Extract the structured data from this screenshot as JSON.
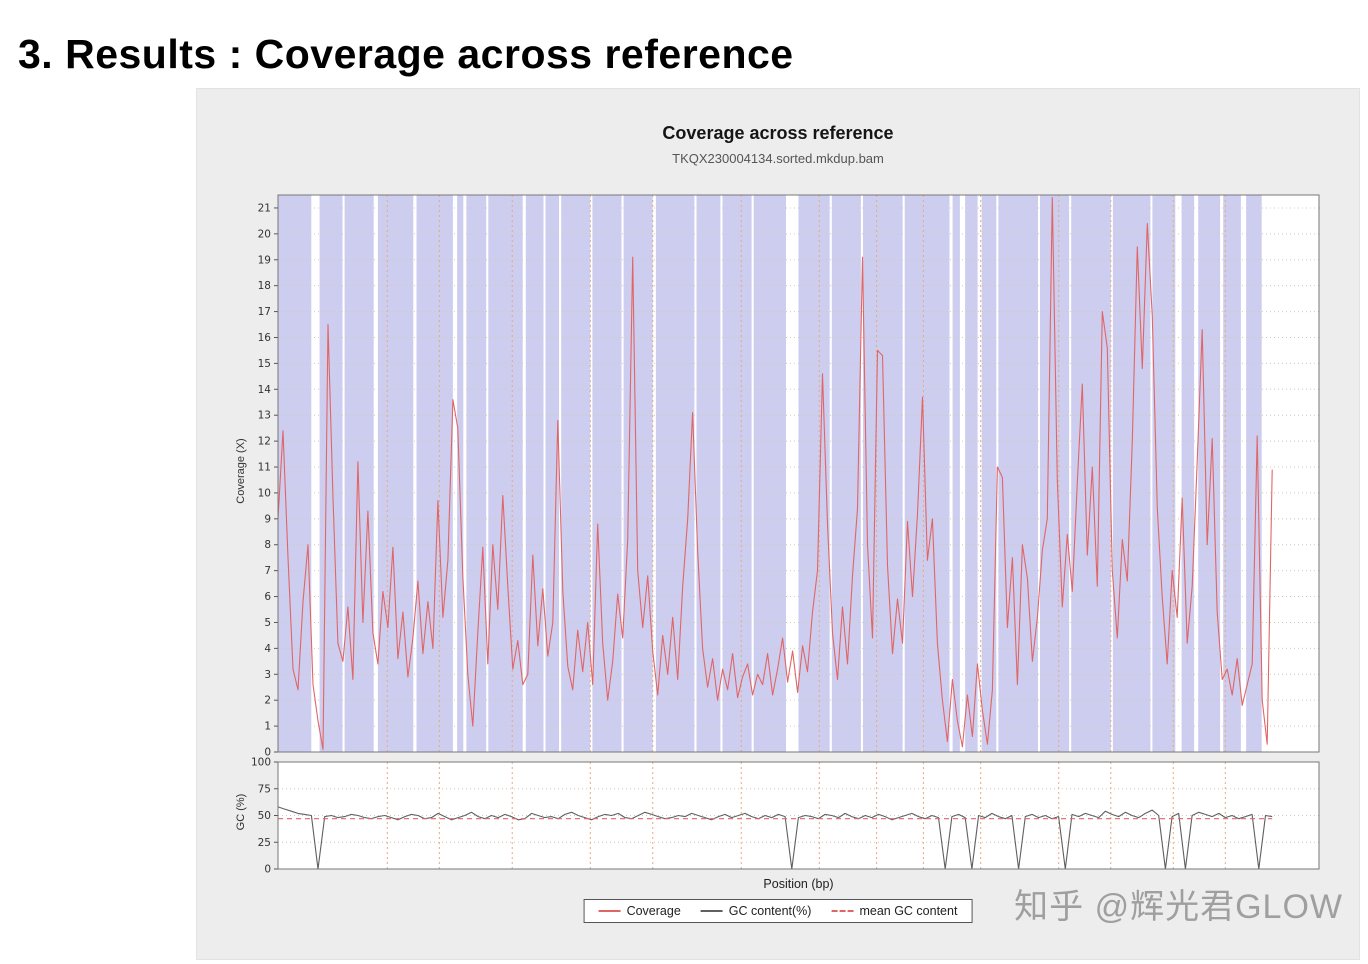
{
  "header": {
    "title": "3. Results : Coverage across reference"
  },
  "chart": {
    "title": "Coverage across reference",
    "subtitle": "TKQX230004134.sorted.mkdup.bam",
    "xlabel": "Position (bp)",
    "ylabel_top": "Coverage (X)",
    "ylabel_bottom": "GC (%)"
  },
  "legend": {
    "items": [
      {
        "label": "Coverage",
        "style": "solid-red"
      },
      {
        "label": "GC content(%)",
        "style": "solid-gray"
      },
      {
        "label": "mean GC content",
        "style": "dashed-red"
      }
    ]
  },
  "watermark": {
    "text": "知乎 @辉光君GLOW"
  },
  "colors": {
    "coverage_line": "#e06666",
    "gc_line": "#606060",
    "mean_gc_line": "#e06666",
    "coverage_band": "#cdcdf0",
    "hgrid": "#d8c8ae",
    "vgrid": "#e8a97c",
    "plot_border": "#777777"
  },
  "chart_data": [
    {
      "type": "line",
      "title": "Coverage across reference",
      "subtitle": "TKQX230004134.sorted.mkdup.bam",
      "ylabel": "Coverage (X)",
      "xlabel": "Position (bp)",
      "ylim": [
        0,
        21.5
      ],
      "yticks": [
        0,
        1,
        2,
        3,
        4,
        5,
        6,
        7,
        8,
        9,
        10,
        11,
        12,
        13,
        14,
        15,
        16,
        17,
        18,
        19,
        20,
        21
      ],
      "x_extent": 0.955,
      "grid_color": "#d8c8ae",
      "xgrid_color": "#e8a97c",
      "xgrid": [
        0.105,
        0.155,
        0.225,
        0.3,
        0.36,
        0.445,
        0.52,
        0.575,
        0.62,
        0.675,
        0.75,
        0.8,
        0.86,
        0.91
      ],
      "band": {
        "color": "#cdcdf0",
        "segments": [
          [
            0,
            0.032
          ],
          [
            0.04,
            0.062
          ],
          [
            0.064,
            0.092
          ],
          [
            0.096,
            0.13
          ],
          [
            0.133,
            0.168
          ],
          [
            0.172,
            0.178
          ],
          [
            0.181,
            0.2
          ],
          [
            0.202,
            0.235
          ],
          [
            0.238,
            0.255
          ],
          [
            0.257,
            0.27
          ],
          [
            0.272,
            0.3
          ],
          [
            0.302,
            0.33
          ],
          [
            0.332,
            0.36
          ],
          [
            0.363,
            0.4
          ],
          [
            0.402,
            0.425
          ],
          [
            0.427,
            0.455
          ],
          [
            0.457,
            0.488
          ],
          [
            0.5,
            0.53
          ],
          [
            0.532,
            0.56
          ],
          [
            0.562,
            0.6
          ],
          [
            0.602,
            0.645
          ],
          [
            0.648,
            0.655
          ],
          [
            0.66,
            0.672
          ],
          [
            0.676,
            0.69
          ],
          [
            0.692,
            0.73
          ],
          [
            0.732,
            0.76
          ],
          [
            0.762,
            0.8
          ],
          [
            0.802,
            0.838
          ],
          [
            0.84,
            0.862
          ],
          [
            0.868,
            0.88
          ],
          [
            0.884,
            0.905
          ],
          [
            0.908,
            0.925
          ],
          [
            0.93,
            0.945
          ]
        ]
      },
      "series": [
        {
          "name": "Coverage",
          "color": "#e06666",
          "values": [
            9.0,
            12.4,
            7.5,
            3.2,
            2.4,
            5.8,
            8.0,
            2.6,
            1.2,
            0.1,
            16.5,
            9.8,
            4.2,
            3.5,
            5.6,
            2.8,
            11.2,
            5.0,
            9.3,
            4.6,
            3.4,
            6.2,
            4.8,
            7.9,
            3.6,
            5.4,
            2.9,
            4.4,
            6.6,
            3.8,
            5.8,
            4.0,
            9.7,
            5.2,
            7.4,
            13.6,
            12.5,
            6.8,
            3.0,
            1.0,
            4.6,
            7.9,
            3.4,
            8.0,
            5.5,
            9.9,
            6.4,
            3.2,
            4.3,
            2.6,
            3.0,
            7.6,
            4.1,
            6.3,
            3.7,
            5.0,
            12.8,
            6.2,
            3.3,
            2.4,
            4.7,
            3.1,
            5.0,
            2.6,
            8.8,
            4.2,
            2.0,
            3.5,
            6.1,
            4.4,
            8.2,
            19.1,
            7.0,
            4.8,
            6.8,
            3.9,
            2.2,
            4.5,
            3.0,
            5.2,
            2.8,
            6.4,
            9.0,
            13.1,
            7.8,
            4.0,
            2.5,
            3.6,
            2.0,
            3.2,
            2.4,
            3.8,
            2.1,
            2.9,
            3.4,
            2.2,
            3.0,
            2.6,
            3.8,
            2.2,
            3.2,
            4.4,
            2.7,
            3.9,
            2.3,
            4.1,
            3.1,
            5.4,
            7.0,
            14.6,
            8.8,
            4.6,
            2.8,
            5.6,
            3.4,
            6.8,
            9.4,
            19.1,
            8.0,
            4.4,
            15.5,
            15.3,
            7.2,
            3.8,
            5.9,
            4.2,
            8.9,
            6.0,
            9.2,
            13.7,
            7.4,
            9.0,
            4.2,
            2.0,
            0.4,
            2.8,
            1.2,
            0.2,
            2.2,
            0.6,
            3.4,
            1.6,
            0.3,
            2.4,
            11.0,
            10.6,
            4.8,
            7.5,
            2.6,
            8.0,
            6.7,
            3.5,
            5.2,
            7.8,
            9.0,
            21.4,
            10.5,
            5.6,
            8.4,
            6.2,
            10.4,
            14.2,
            7.6,
            11.0,
            6.4,
            17.0,
            15.6,
            7.0,
            4.4,
            8.2,
            6.6,
            12.0,
            19.5,
            14.8,
            20.4,
            16.8,
            9.4,
            6.0,
            3.4,
            7.0,
            5.2,
            9.8,
            4.2,
            6.4,
            11.2,
            16.3,
            8.0,
            12.1,
            5.4,
            2.8,
            3.2,
            2.2,
            3.6,
            1.8,
            2.6,
            3.4,
            12.2,
            2.0,
            0.3,
            10.9
          ]
        }
      ]
    },
    {
      "type": "line",
      "ylabel": "GC (%)",
      "ylim": [
        0,
        100
      ],
      "yticks": [
        0,
        25,
        50,
        75,
        100
      ],
      "x_extent": 0.955,
      "grid_color": "#d8c8ae",
      "xgrid_color": "#e8a97c",
      "xgrid": [
        0.105,
        0.155,
        0.225,
        0.3,
        0.36,
        0.445,
        0.52,
        0.575,
        0.62,
        0.675,
        0.75,
        0.8,
        0.86,
        0.91
      ],
      "series": [
        {
          "name": "GC content(%)",
          "color": "#606060",
          "values": [
            58,
            56,
            54,
            52,
            51,
            50,
            0,
            49,
            50,
            48,
            49,
            51,
            50,
            48,
            47,
            49,
            50,
            48,
            46,
            49,
            51,
            50,
            47,
            48,
            52,
            49,
            46,
            48,
            50,
            53,
            49,
            47,
            50,
            48,
            51,
            49,
            46,
            47,
            52,
            50,
            48,
            49,
            47,
            51,
            53,
            50,
            48,
            46,
            49,
            51,
            50,
            52,
            48,
            47,
            50,
            53,
            51,
            49,
            47,
            48,
            50,
            49,
            52,
            50,
            48,
            46,
            49,
            51,
            48,
            50,
            52,
            49,
            47,
            50,
            48,
            51,
            49,
            0,
            48,
            50,
            49,
            47,
            51,
            50,
            48,
            52,
            49,
            47,
            50,
            48,
            51,
            49,
            46,
            48,
            50,
            52,
            49,
            47,
            50,
            48,
            0,
            49,
            51,
            48,
            0,
            50,
            48,
            52,
            49,
            47,
            50,
            0,
            49,
            51,
            48,
            50,
            47,
            49,
            0,
            51,
            49,
            52,
            50,
            48,
            54,
            51,
            49,
            53,
            50,
            48,
            52,
            55,
            50,
            0,
            49,
            52,
            0,
            50,
            53,
            51,
            49,
            52,
            48,
            50,
            47,
            49,
            51,
            0,
            50,
            49
          ]
        },
        {
          "name": "mean GC content",
          "color": "#e06666",
          "dashed": true,
          "constant": 47
        }
      ]
    }
  ]
}
